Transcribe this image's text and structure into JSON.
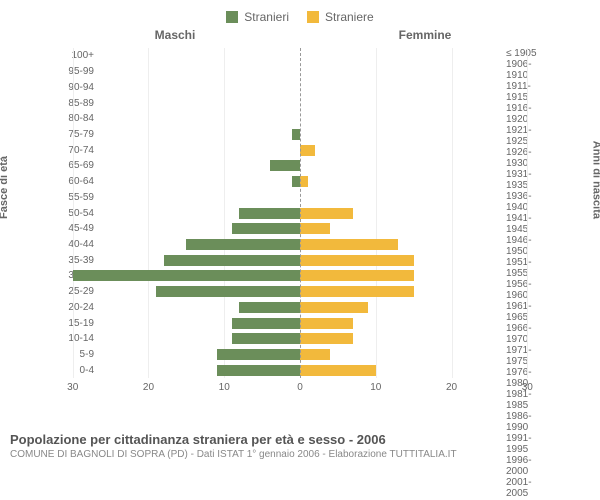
{
  "legend": {
    "male": {
      "label": "Stranieri",
      "color": "#6b8e5a"
    },
    "female": {
      "label": "Straniere",
      "color": "#f2b93c"
    }
  },
  "col_headers": {
    "left": "Maschi",
    "right": "Femmine"
  },
  "axis_labels": {
    "left": "Fasce di età",
    "right": "Anni di nascita"
  },
  "chart": {
    "type": "population-pyramid",
    "background_color": "#ffffff",
    "grid_color": "#eeeeee",
    "centerline_color": "#999999",
    "x_max": 33,
    "x_ticks": [
      30,
      20,
      10,
      0,
      10,
      20,
      30
    ],
    "bar_gap_pct": 30,
    "age_labels": [
      "100+",
      "95-99",
      "90-94",
      "85-89",
      "80-84",
      "75-79",
      "70-74",
      "65-69",
      "60-64",
      "55-59",
      "50-54",
      "45-49",
      "40-44",
      "35-39",
      "30-34",
      "25-29",
      "20-24",
      "15-19",
      "10-14",
      "5-9",
      "0-4"
    ],
    "birth_labels": [
      "≤ 1905",
      "1906-1910",
      "1911-1915",
      "1916-1920",
      "1921-1925",
      "1926-1930",
      "1931-1935",
      "1936-1940",
      "1941-1945",
      "1946-1950",
      "1951-1955",
      "1956-1960",
      "1961-1965",
      "1966-1970",
      "1971-1975",
      "1976-1980",
      "1981-1985",
      "1986-1990",
      "1991-1995",
      "1996-2000",
      "2001-2005"
    ],
    "male_values": [
      0,
      0,
      0,
      0,
      0,
      1,
      0,
      4,
      1,
      0,
      8,
      9,
      15,
      18,
      30,
      19,
      8,
      9,
      9,
      11,
      11
    ],
    "female_values": [
      0,
      0,
      0,
      0,
      0,
      0,
      2,
      0,
      1,
      0,
      7,
      4,
      13,
      15,
      15,
      15,
      9,
      7,
      7,
      4,
      10
    ]
  },
  "footer": {
    "title": "Popolazione per cittadinanza straniera per età e sesso - 2006",
    "subtitle": "COMUNE DI BAGNOLI DI SOPRA (PD) - Dati ISTAT 1° gennaio 2006 - Elaborazione TUTTITALIA.IT"
  }
}
